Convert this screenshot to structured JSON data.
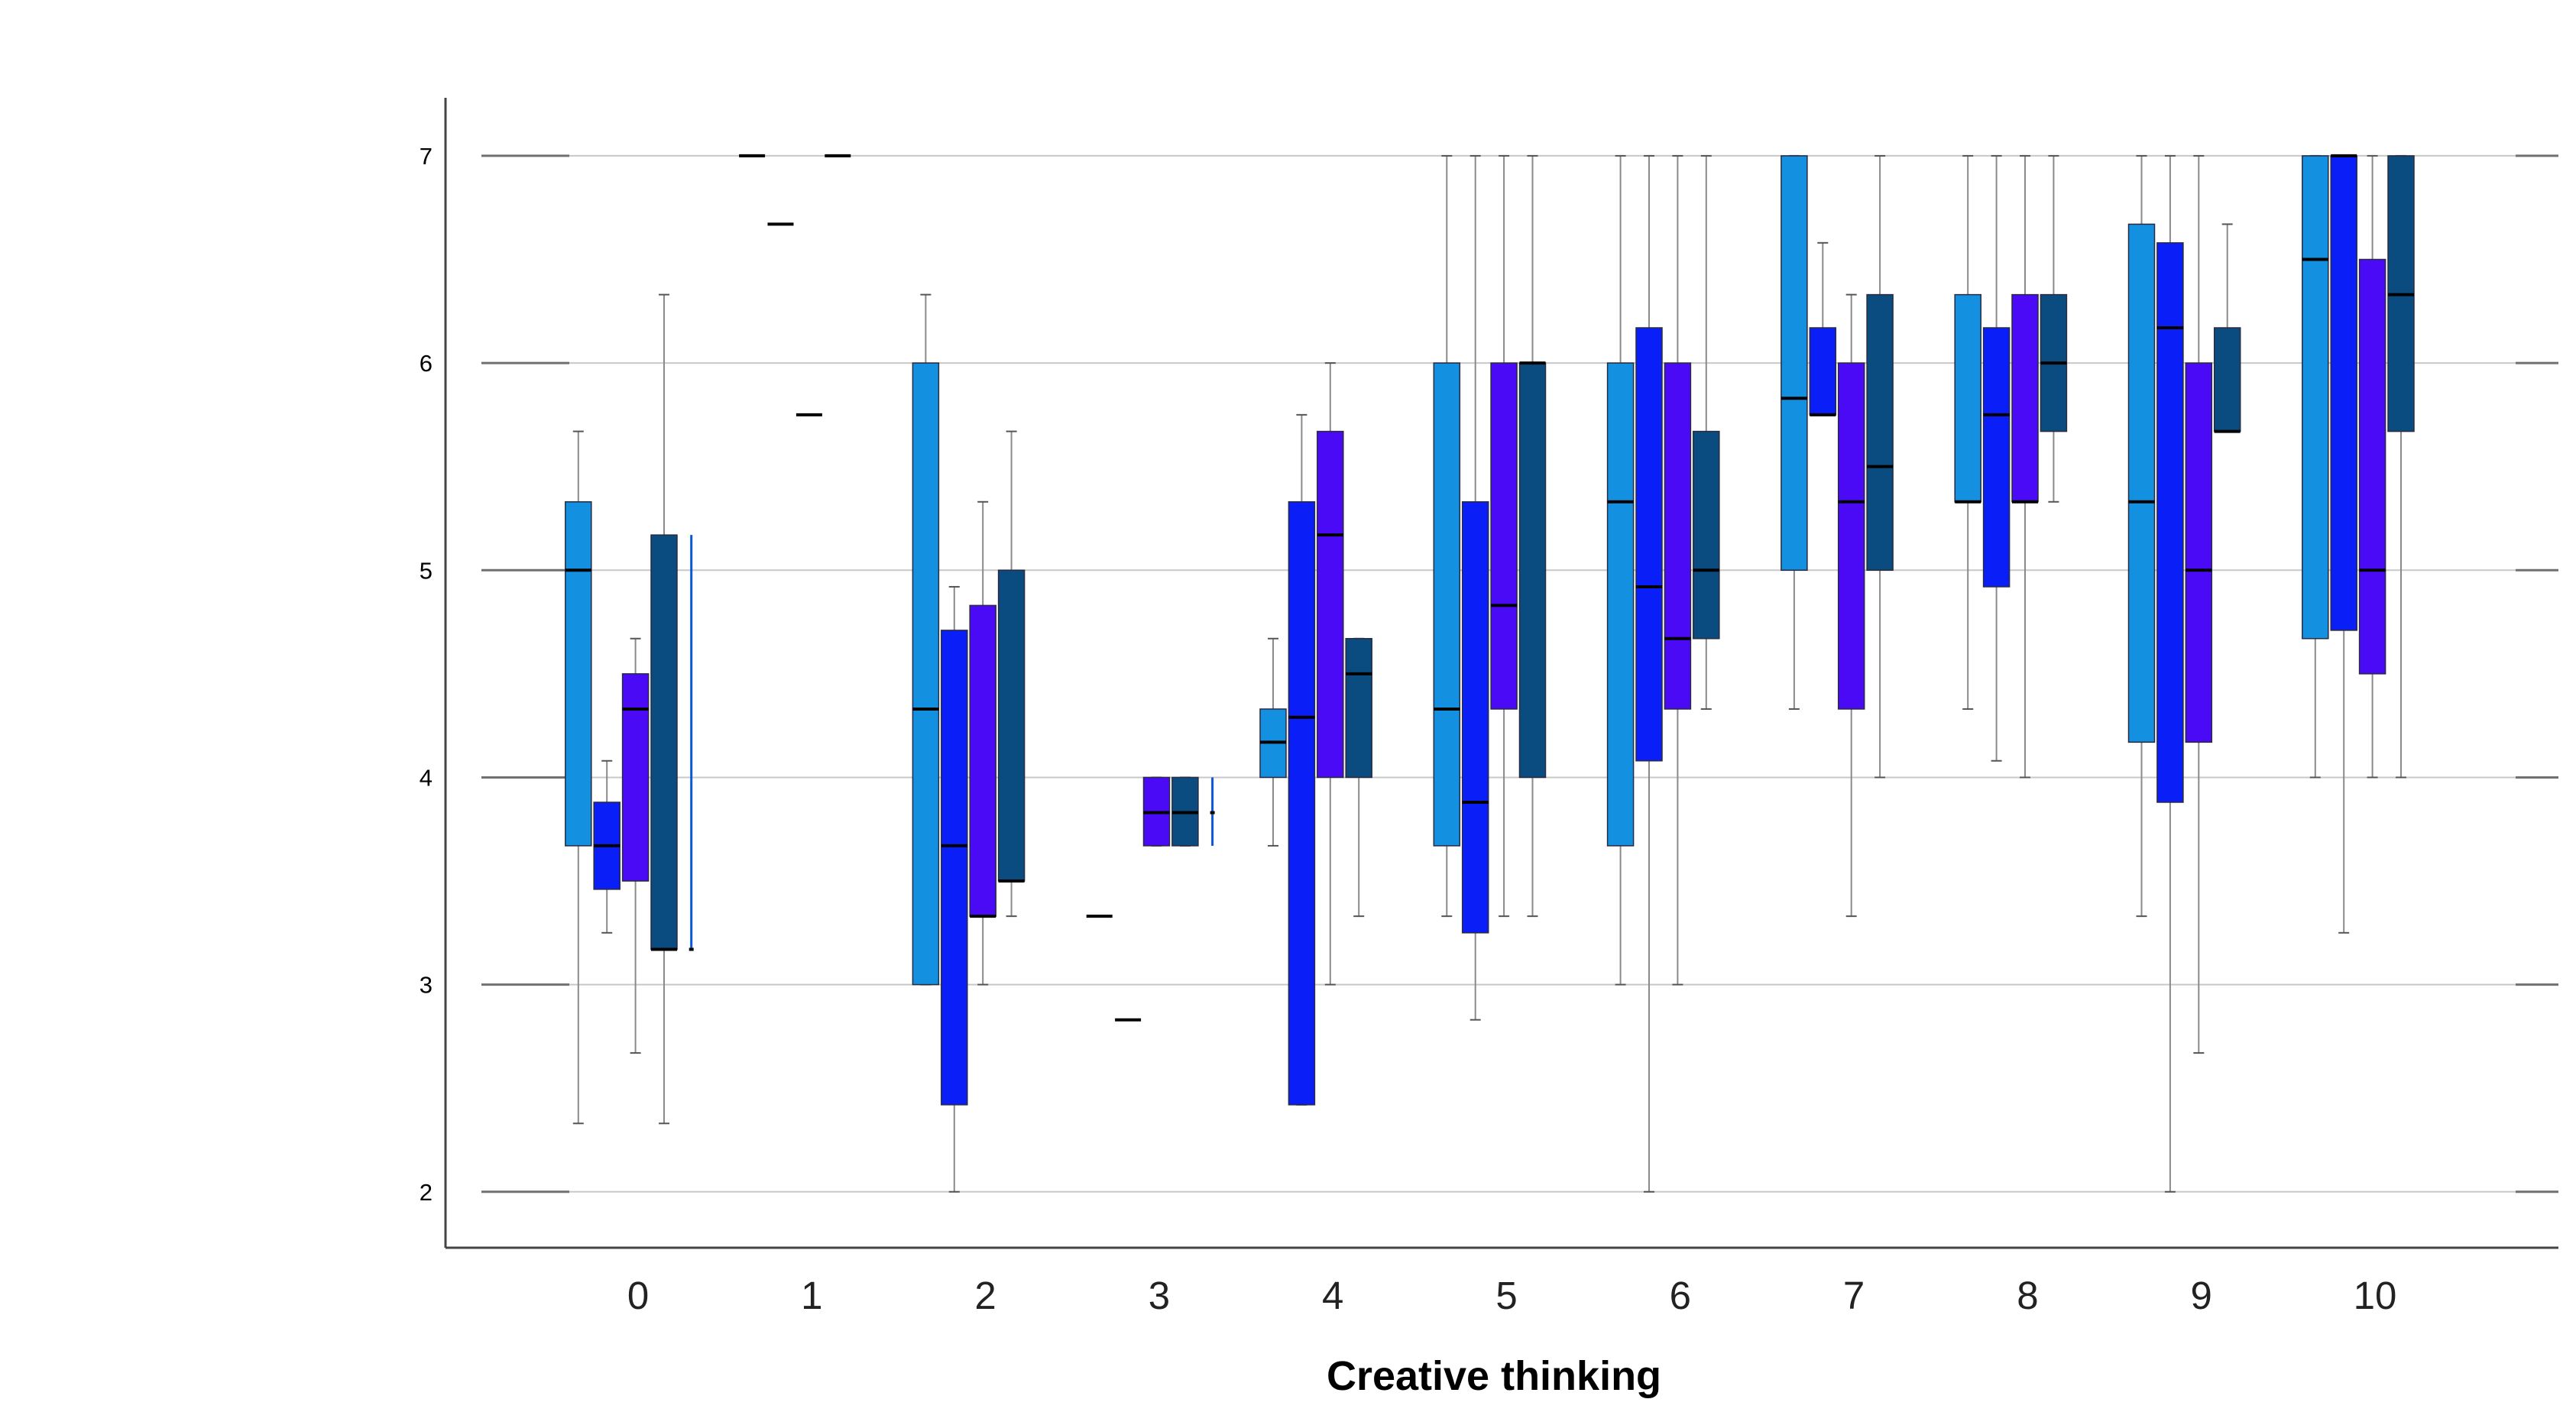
{
  "chart_data": {
    "type": "boxplot",
    "title": "",
    "xlabel": "Creative thinking",
    "ylabel": "",
    "ylim": [
      1.73,
      7.28
    ],
    "yticks": [
      2,
      3,
      4,
      5,
      6,
      7
    ],
    "grid": "horizontal",
    "legend": "none",
    "categories": [
      "0",
      "1",
      "2",
      "3",
      "4",
      "5",
      "6",
      "7",
      "8",
      "9",
      "10"
    ],
    "series": [
      {
        "color": "#1490e0",
        "boxes": [
          {
            "min": 2.33,
            "q1": 3.67,
            "median": 5.0,
            "q3": 5.33,
            "max": 5.67
          },
          {
            "median": 7.0
          },
          {
            "min": 3.0,
            "q1": 3.0,
            "median": 4.33,
            "q3": 6.0,
            "max": 6.33
          },
          {
            "median": 3.33
          },
          {
            "min": 3.67,
            "q1": 4.0,
            "median": 4.17,
            "q3": 4.33,
            "max": 4.67
          },
          {
            "min": 3.33,
            "q1": 3.67,
            "median": 4.33,
            "q3": 6.0,
            "max": 7.0
          },
          {
            "min": 3.0,
            "q1": 3.67,
            "median": 5.33,
            "q3": 6.0,
            "max": 7.0
          },
          {
            "min": 4.33,
            "q1": 5.0,
            "median": 5.83,
            "q3": 7.0,
            "max": 7.0
          },
          {
            "min": 4.33,
            "q1": 5.33,
            "median": 5.33,
            "q3": 6.33,
            "max": 7.0
          },
          {
            "min": 3.33,
            "q1": 4.17,
            "median": 5.33,
            "q3": 6.67,
            "max": 7.0
          },
          {
            "min": 4.0,
            "q1": 4.67,
            "median": 6.5,
            "q3": 7.0,
            "max": 7.0
          }
        ]
      },
      {
        "color": "#0a1ef8",
        "boxes": [
          {
            "min": 3.25,
            "q1": 3.46,
            "median": 3.67,
            "q3": 3.88,
            "max": 4.08
          },
          {
            "median": 6.67
          },
          {
            "min": 2.0,
            "q1": 2.42,
            "median": 3.67,
            "q3": 4.71,
            "max": 4.92
          },
          {
            "median": 2.83
          },
          {
            "min": 2.42,
            "q1": 2.42,
            "median": 4.29,
            "q3": 5.33,
            "max": 5.75
          },
          {
            "min": 2.83,
            "q1": 3.25,
            "median": 3.88,
            "q3": 5.33,
            "max": 7.0
          },
          {
            "min": 2.0,
            "q1": 4.08,
            "median": 4.92,
            "q3": 6.17,
            "max": 7.0
          },
          {
            "min": 5.75,
            "q1": 5.75,
            "median": 5.75,
            "q3": 6.17,
            "max": 6.58
          },
          {
            "min": 4.08,
            "q1": 4.92,
            "median": 5.75,
            "q3": 6.17,
            "max": 7.0
          },
          {
            "min": 2.0,
            "q1": 3.88,
            "median": 6.17,
            "q3": 6.58,
            "max": 7.0
          },
          {
            "min": 3.25,
            "q1": 4.71,
            "median": 7.0,
            "q3": 7.0,
            "max": 7.0
          }
        ]
      },
      {
        "color": "#4a0af5",
        "boxes": [
          {
            "min": 2.67,
            "q1": 3.5,
            "median": 4.33,
            "q3": 4.5,
            "max": 4.67
          },
          {
            "median": 5.75
          },
          {
            "min": 3.0,
            "q1": 3.33,
            "median": 3.33,
            "q3": 4.83,
            "max": 5.33
          },
          {
            "min": 3.67,
            "q1": 3.67,
            "median": 3.83,
            "q3": 4.0,
            "max": 4.0
          },
          {
            "min": 3.0,
            "q1": 4.0,
            "median": 5.17,
            "q3": 5.67,
            "max": 6.0
          },
          {
            "min": 3.33,
            "q1": 4.33,
            "median": 4.83,
            "q3": 6.0,
            "max": 7.0
          },
          {
            "min": 3.0,
            "q1": 4.33,
            "median": 4.67,
            "q3": 6.0,
            "max": 7.0
          },
          {
            "min": 3.33,
            "q1": 4.33,
            "median": 5.33,
            "q3": 6.0,
            "max": 6.33
          },
          {
            "min": 4.0,
            "q1": 5.33,
            "median": 5.33,
            "q3": 6.33,
            "max": 7.0
          },
          {
            "min": 2.67,
            "q1": 4.17,
            "median": 5.0,
            "q3": 6.0,
            "max": 7.0
          },
          {
            "min": 4.0,
            "q1": 4.5,
            "median": 5.0,
            "q3": 6.5,
            "max": 7.0
          }
        ]
      },
      {
        "color": "#0a4c80",
        "boxes": [
          {
            "min": 2.33,
            "q1": 3.17,
            "median": 3.17,
            "q3": 5.17,
            "max": 6.33
          },
          {
            "median": 7.0
          },
          {
            "min": 3.33,
            "q1": 3.5,
            "median": 3.5,
            "q3": 5.0,
            "max": 5.67
          },
          {
            "min": 3.67,
            "q1": 3.67,
            "median": 3.83,
            "q3": 4.0,
            "max": 4.0
          },
          {
            "min": 3.33,
            "q1": 4.0,
            "median": 4.5,
            "q3": 4.67,
            "max": 4.67
          },
          {
            "min": 3.33,
            "q1": 4.0,
            "median": 6.0,
            "q3": 6.0,
            "max": 7.0
          },
          {
            "min": 4.33,
            "q1": 4.67,
            "median": 5.0,
            "q3": 5.67,
            "max": 7.0
          },
          {
            "min": 4.0,
            "q1": 5.0,
            "median": 5.5,
            "q3": 6.33,
            "max": 7.0
          },
          {
            "min": 5.33,
            "q1": 5.67,
            "median": 6.0,
            "q3": 6.33,
            "max": 7.0
          },
          {
            "min": 5.67,
            "q1": 5.67,
            "median": 5.67,
            "q3": 6.17,
            "max": 6.67
          },
          {
            "min": 4.0,
            "q1": 5.67,
            "median": 6.33,
            "q3": 7.0,
            "max": 7.0
          }
        ]
      },
      {
        "color": "#0a58d8",
        "boxes": [
          {
            "min": 3.17,
            "q1": 3.17,
            "median": 3.17,
            "q3": 5.17,
            "max": 5.17
          },
          null,
          null,
          {
            "min": 3.67,
            "q1": 3.67,
            "median": 3.83,
            "q3": 4.0,
            "max": 4.0
          },
          null,
          null,
          null,
          null,
          null,
          null,
          null
        ]
      }
    ]
  }
}
